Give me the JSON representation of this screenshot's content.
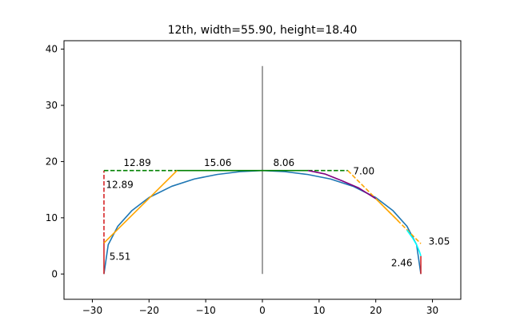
{
  "chart_data": {
    "type": "line",
    "title": "12th, width=55.90, height=18.40",
    "xlabel": "",
    "ylabel": "",
    "xlim": [
      -35,
      35
    ],
    "ylim": [
      -4.5,
      41.5
    ],
    "xticks": [
      -30,
      -20,
      -10,
      0,
      10,
      20,
      30
    ],
    "yticks": [
      0,
      10,
      20,
      30,
      40
    ],
    "grid": false,
    "colors": {
      "arc": "#1f77b4",
      "tangent": "#ffa500",
      "dashed_tangent": "#ffa500",
      "top_line": "#008000",
      "left_dashed": "#d62728",
      "end_caps": "#d62728",
      "purple_segment": "#800080",
      "cyan_segment": "#00ffff",
      "center_axis": "#808080"
    },
    "series": [
      {
        "kind": "arc",
        "style": "solid",
        "color_key": "arc",
        "x": [
          -27.95,
          -27.2,
          -25.5,
          -23,
          -20,
          -16,
          -12,
          -8,
          -4,
          0,
          4,
          8,
          12,
          16,
          20,
          23,
          25.5,
          27.2,
          27.95
        ],
        "y": [
          0,
          5.2,
          8.5,
          11.3,
          13.6,
          15.6,
          16.9,
          17.7,
          18.2,
          18.4,
          18.2,
          17.7,
          16.9,
          15.6,
          13.6,
          11.3,
          8.5,
          5.2,
          0
        ]
      },
      {
        "kind": "vertical",
        "style": "solid",
        "color_key": "center_axis",
        "x": [
          0,
          0
        ],
        "y": [
          0,
          37
        ]
      },
      {
        "kind": "left-end-cap",
        "style": "solid",
        "color_key": "end_caps",
        "x": [
          -27.95,
          -27.95
        ],
        "y": [
          0,
          5.51
        ]
      },
      {
        "kind": "right-end-cap",
        "style": "solid",
        "color_key": "end_caps",
        "x": [
          27.95,
          27.95
        ],
        "y": [
          0,
          3.2
        ]
      },
      {
        "kind": "left-vertical-dashed",
        "style": "dashed",
        "color_key": "left_dashed",
        "x": [
          -27.95,
          -27.95
        ],
        "y": [
          5.51,
          18.4
        ]
      },
      {
        "kind": "top-dashed-left",
        "style": "dashed",
        "color_key": "top_line",
        "x": [
          -27.95,
          -15.06
        ],
        "y": [
          18.4,
          18.4
        ]
      },
      {
        "kind": "top-solid",
        "style": "solid",
        "color_key": "top_line",
        "x": [
          -15.06,
          8.06
        ],
        "y": [
          18.4,
          18.4
        ]
      },
      {
        "kind": "top-dashed-right",
        "style": "dashed",
        "color_key": "top_line",
        "x": [
          8.06,
          15.06
        ],
        "y": [
          18.4,
          18.4
        ]
      },
      {
        "kind": "left-tangent",
        "style": "solid",
        "color_key": "tangent",
        "x": [
          -27.95,
          -15.06
        ],
        "y": [
          5.51,
          18.4
        ]
      },
      {
        "kind": "right-tangent-dashed",
        "style": "dashed",
        "color_key": "dashed_tangent",
        "x": [
          15.06,
          27.95
        ],
        "y": [
          18.4,
          5.4
        ]
      },
      {
        "kind": "right-tangent-solid",
        "style": "solid",
        "color_key": "tangent",
        "x": [
          20.0,
          24.0
        ],
        "y": [
          13.4,
          9.4
        ]
      },
      {
        "kind": "purple-segment",
        "style": "solid",
        "color_key": "purple_segment",
        "x": [
          8.06,
          11,
          14,
          17,
          20
        ],
        "y": [
          18.4,
          17.8,
          16.6,
          15.3,
          13.4
        ]
      },
      {
        "kind": "cyan-segment",
        "style": "solid",
        "color_key": "cyan_segment",
        "x": [
          25.5,
          26.5,
          27.2,
          27.7,
          27.95
        ],
        "y": [
          7.8,
          6.4,
          5.2,
          4.0,
          3.2
        ]
      }
    ],
    "annotations": [
      {
        "text": "12.89",
        "x": -24.5,
        "y": 19.2
      },
      {
        "text": "12.89",
        "x": -27.6,
        "y": 15.3
      },
      {
        "text": "15.06",
        "x": -10.3,
        "y": 19.2
      },
      {
        "text": "8.06",
        "x": 1.9,
        "y": 19.2
      },
      {
        "text": "7.00",
        "x": 16.0,
        "y": 17.7
      },
      {
        "text": "5.51",
        "x": -27.0,
        "y": 2.5
      },
      {
        "text": "3.05",
        "x": 29.3,
        "y": 5.2
      },
      {
        "text": "2.46",
        "x": 22.7,
        "y": 1.4
      }
    ]
  }
}
